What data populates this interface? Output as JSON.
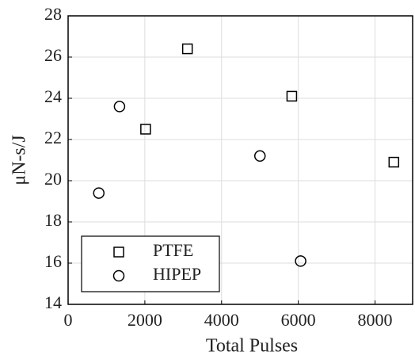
{
  "chart_data": {
    "type": "scatter",
    "xlabel": "Total Pulses",
    "ylabel": "μN-s/J",
    "xlim": [
      0,
      9000
    ],
    "ylim": [
      14,
      28
    ],
    "xticks": [
      0,
      2000,
      4000,
      6000,
      8000
    ],
    "yticks": [
      14,
      16,
      18,
      20,
      22,
      24,
      26,
      28
    ],
    "grid": true,
    "legend": "lower left",
    "series": [
      {
        "name": "PTFE",
        "marker": "square",
        "color": "#000000",
        "x": [
          2020,
          3110,
          5830,
          8490
        ],
        "values": [
          22.5,
          26.4,
          24.1,
          20.9
        ]
      },
      {
        "name": "HIPEP",
        "marker": "circle",
        "color": "#000000",
        "x": [
          800,
          1340,
          5000,
          6060
        ],
        "values": [
          19.4,
          23.6,
          21.2,
          16.1
        ]
      }
    ]
  }
}
